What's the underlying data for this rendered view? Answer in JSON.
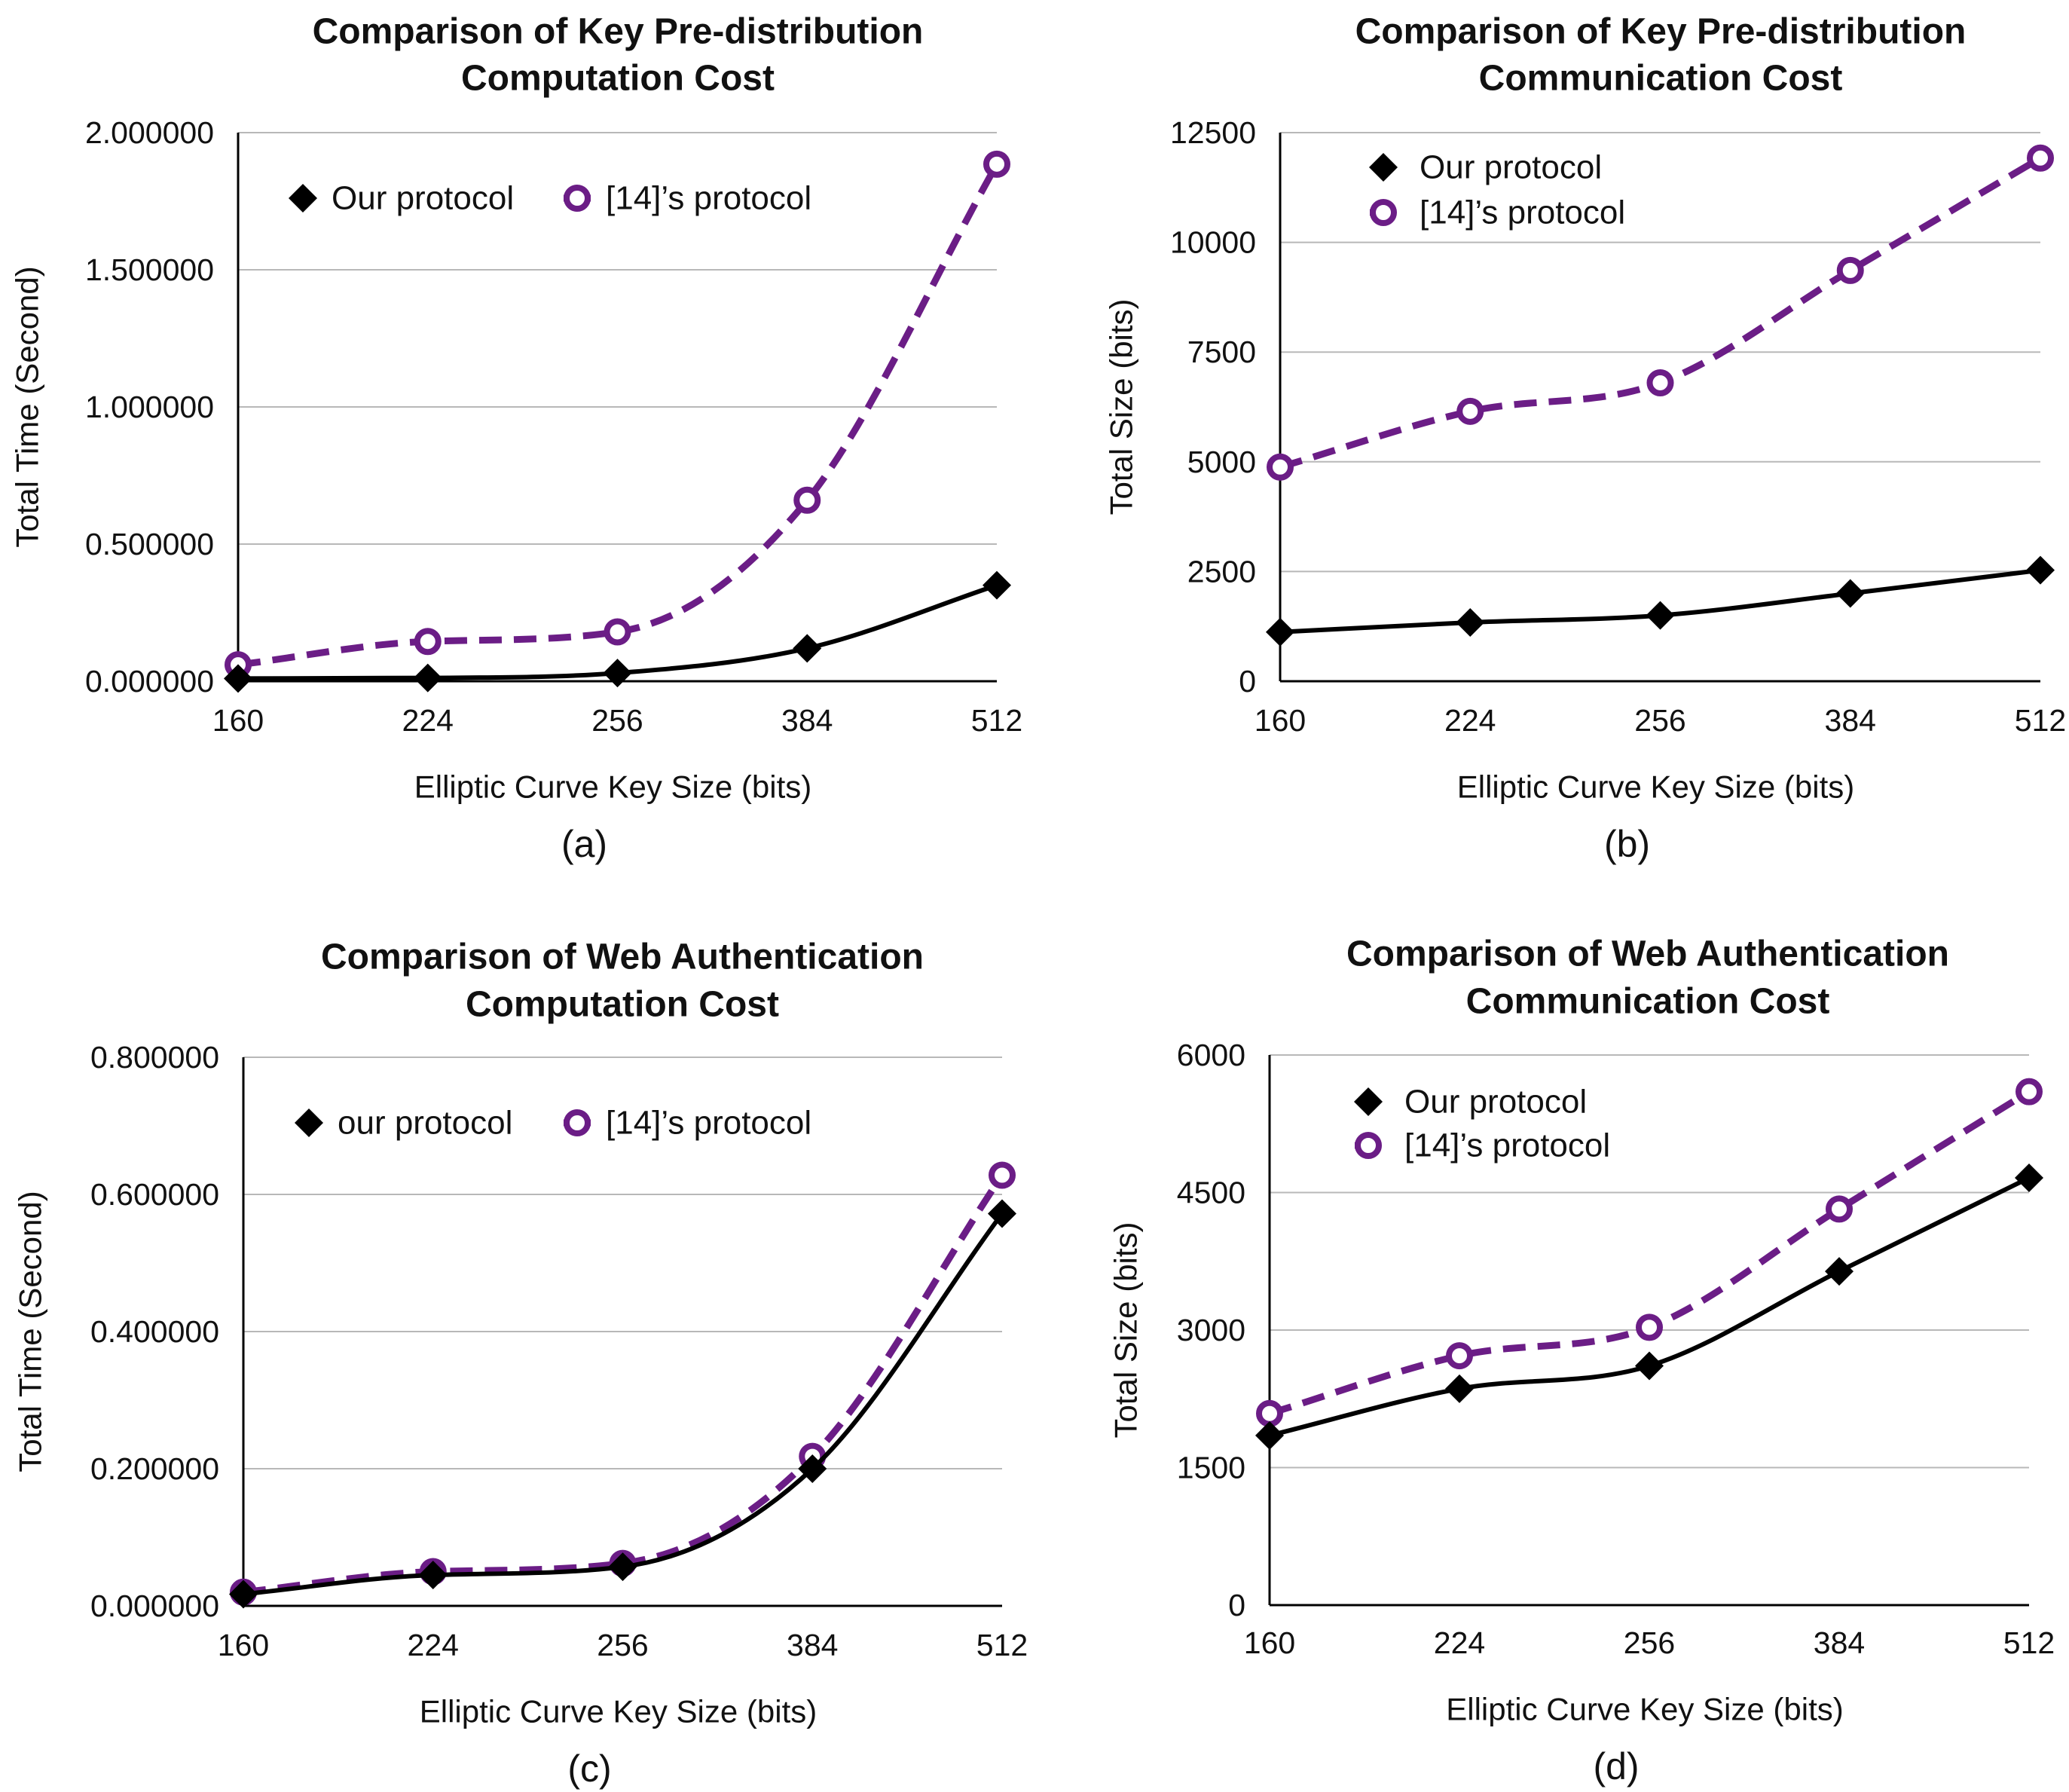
{
  "colors": {
    "ours": "#000000",
    "theirs": "#6b1d86",
    "grid": "#b8b8b8"
  },
  "chart_data": [
    {
      "id": "a",
      "type": "line",
      "title": [
        "Comparison of Key Pre-distribution",
        "Computation Cost"
      ],
      "xlabel": "Elliptic Curve Key Size (bits)",
      "ylabel": "Total Time (Second)",
      "caption": "(a)",
      "categories": [
        "160",
        "224",
        "256",
        "384",
        "512"
      ],
      "yticks": [
        "0.000000",
        "0.500000",
        "1.000000",
        "1.500000",
        "2.000000"
      ],
      "ylim": [
        0,
        2
      ],
      "legend": "top-left-horizontal",
      "series": [
        {
          "name": "Our protocol",
          "style": "ours",
          "values": [
            0.01,
            0.012,
            0.03,
            0.12,
            0.35
          ]
        },
        {
          "name": "[14]’s protocol",
          "style": "theirs",
          "values": [
            0.06,
            0.145,
            0.18,
            0.66,
            1.885
          ]
        }
      ]
    },
    {
      "id": "b",
      "type": "line",
      "title": [
        "Comparison of Key Pre-distribution",
        "Communication Cost"
      ],
      "xlabel": "Elliptic Curve Key Size (bits)",
      "ylabel": "Total Size (bits)",
      "caption": "(b)",
      "categories": [
        "160",
        "224",
        "256",
        "384",
        "512"
      ],
      "yticks": [
        "0",
        "2500",
        "5000",
        "7500",
        "10000",
        "12500"
      ],
      "ylim": [
        0,
        12500
      ],
      "legend": "top-left-vertical",
      "series": [
        {
          "name": "Our protocol",
          "style": "ours",
          "values": [
            1120,
            1340,
            1500,
            2000,
            2530
          ]
        },
        {
          "name": "[14]’s protocol",
          "style": "theirs",
          "values": [
            4880,
            6150,
            6800,
            9360,
            11920
          ]
        }
      ]
    },
    {
      "id": "c",
      "type": "line",
      "title": [
        "Comparison of Web Authentication",
        "Computation Cost"
      ],
      "xlabel": "Elliptic Curve Key Size (bits)",
      "ylabel": "Total Time (Second)",
      "caption": "(c)",
      "categories": [
        "160",
        "224",
        "256",
        "384",
        "512"
      ],
      "yticks": [
        "0.000000",
        "0.200000",
        "0.400000",
        "0.600000",
        "0.800000"
      ],
      "ylim": [
        0,
        0.8
      ],
      "legend": "top-left-horizontal",
      "series": [
        {
          "name": "our protocol",
          "style": "ours",
          "values": [
            0.017,
            0.045,
            0.057,
            0.2,
            0.572
          ]
        },
        {
          "name": "[14]’s protocol",
          "style": "theirs",
          "values": [
            0.02,
            0.05,
            0.062,
            0.218,
            0.628
          ]
        }
      ]
    },
    {
      "id": "d",
      "type": "line",
      "title": [
        "Comparison of Web Authentication",
        "Communication Cost"
      ],
      "xlabel": "Elliptic Curve Key Size (bits)",
      "ylabel": "Total Size (bits)",
      "caption": "(d)",
      "categories": [
        "160",
        "224",
        "256",
        "384",
        "512"
      ],
      "yticks": [
        "0",
        "1500",
        "3000",
        "4500",
        "6000"
      ],
      "ylim": [
        0,
        6000
      ],
      "legend": "top-left-vertical",
      "series": [
        {
          "name": "Our protocol",
          "style": "ours",
          "values": [
            1850,
            2360,
            2610,
            3640,
            4660
          ]
        },
        {
          "name": "[14]’s protocol",
          "style": "theirs",
          "values": [
            2090,
            2720,
            3030,
            4320,
            5600
          ]
        }
      ]
    }
  ]
}
